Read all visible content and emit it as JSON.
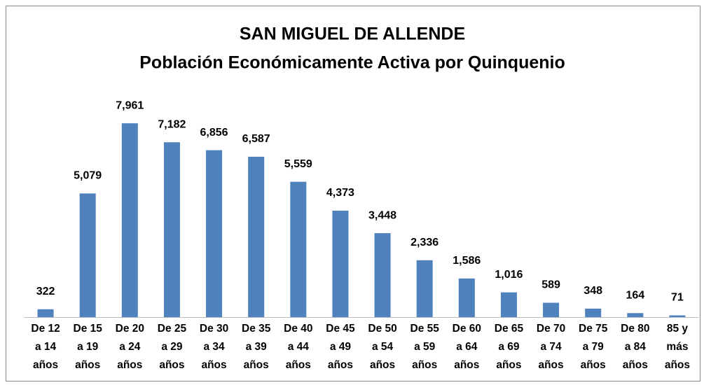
{
  "chart_data": {
    "type": "bar",
    "title": "SAN MIGUEL DE ALLENDE",
    "subtitle": "Población Económicamente Activa por Quinquenio",
    "categories": [
      "De 12\na 14\naños",
      "De 15\na 19\naños",
      "De 20\na 24\naños",
      "De 25\na 29\naños",
      "De 30\na 34\naños",
      "De 35\na 39\naños",
      "De 40\na 44\naños",
      "De 45\na 49\naños",
      "De 50\na 54\naños",
      "De 55\na 59\naños",
      "De 60\na 64\naños",
      "De 65\na 69\naños",
      "De 70\na 74\naños",
      "De 75\na 79\naños",
      "De 80\na 84\naños",
      "85 y\nmás\naños"
    ],
    "values": [
      322,
      5079,
      7961,
      7182,
      6856,
      6587,
      5559,
      4373,
      3448,
      2336,
      1586,
      1016,
      589,
      348,
      164,
      71
    ],
    "value_labels": [
      "322",
      "5,079",
      "7,961",
      "7,182",
      "6,856",
      "6,587",
      "5,559",
      "4,373",
      "3,448",
      "2,336",
      "1,586",
      "1,016",
      "589",
      "348",
      "164",
      "71"
    ],
    "color": "#4f81bd",
    "ylim": [
      0,
      9000
    ]
  }
}
